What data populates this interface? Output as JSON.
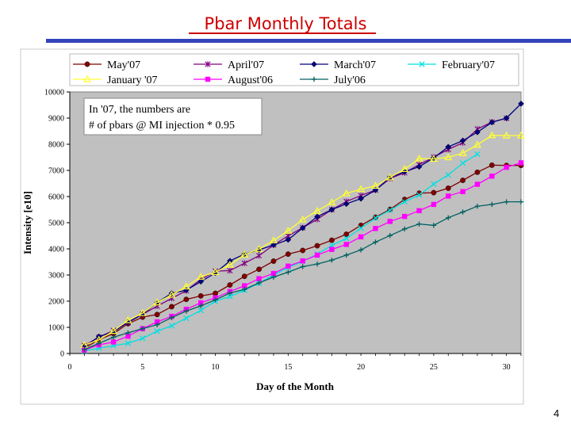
{
  "slide": {
    "title": "Pbar Monthly Totals",
    "page_number": "4"
  },
  "chart_data": {
    "type": "line",
    "xlabel": "Day of the  Month",
    "ylabel": "Intensity [e10]",
    "xlim": [
      0,
      31
    ],
    "ylim": [
      0,
      10000
    ],
    "xticks": [
      0,
      5,
      10,
      15,
      20,
      25,
      30
    ],
    "yticks": [
      0,
      1000,
      2000,
      3000,
      4000,
      5000,
      6000,
      7000,
      8000,
      9000,
      10000
    ],
    "grid": false,
    "plot_background": "#c0c0c0",
    "legend_position": "top",
    "annotation": [
      "In '07, the numbers are",
      "# of pbars @ MI injection * 0.95"
    ],
    "series": [
      {
        "name": "May'07",
        "color": "#800000",
        "marker": "circle",
        "x": [
          1,
          2,
          3,
          4,
          5,
          6,
          7,
          8,
          9,
          10,
          11,
          12,
          13,
          14,
          15,
          16,
          17,
          18,
          19,
          20,
          21,
          22,
          23,
          24,
          25,
          26,
          27,
          28,
          29,
          30,
          31
        ],
        "y": [
          200,
          530,
          760,
          1140,
          1390,
          1490,
          1790,
          2070,
          2200,
          2300,
          2620,
          2950,
          3220,
          3530,
          3800,
          3940,
          4120,
          4330,
          4560,
          4900,
          5210,
          5510,
          5890,
          6130,
          6150,
          6320,
          6620,
          6930,
          7200,
          7190,
          7190
        ]
      },
      {
        "name": "April'07",
        "color": "#800080",
        "marker": "star",
        "x": [
          1,
          2,
          3,
          4,
          5,
          6,
          7,
          8,
          9,
          10,
          11,
          12,
          13,
          14,
          15,
          16,
          17,
          18,
          19,
          20,
          21,
          22,
          23,
          24,
          25,
          26,
          27,
          28,
          29,
          30
        ],
        "y": [
          300,
          620,
          880,
          1180,
          1500,
          1810,
          2110,
          2400,
          2830,
          3150,
          3170,
          3450,
          3740,
          4150,
          4500,
          4810,
          5130,
          5500,
          5810,
          6040,
          6250,
          6690,
          6910,
          7220,
          7510,
          7800,
          8060,
          8580,
          8850,
          8990
        ]
      },
      {
        "name": "March'07",
        "color": "#000080",
        "marker": "diamond",
        "x": [
          1,
          2,
          3,
          4,
          5,
          6,
          7,
          8,
          9,
          10,
          11,
          12,
          13,
          14,
          15,
          16,
          17,
          18,
          19,
          20,
          21,
          22,
          23,
          24,
          25,
          26,
          27,
          28,
          29,
          30,
          31
        ],
        "y": [
          250,
          650,
          830,
          1200,
          1500,
          1950,
          2300,
          2420,
          2750,
          3080,
          3540,
          3800,
          3960,
          4150,
          4350,
          4800,
          5230,
          5500,
          5720,
          5920,
          6250,
          6730,
          6950,
          7140,
          7480,
          7900,
          8140,
          8460,
          8840,
          9000,
          9550
        ]
      },
      {
        "name": "February'07",
        "color": "#00e0e0",
        "marker": "x",
        "x": [
          1,
          2,
          3,
          4,
          5,
          6,
          7,
          8,
          9,
          10,
          11,
          12,
          13,
          14,
          15,
          16,
          17,
          18,
          19,
          20,
          21,
          22,
          23,
          24,
          25,
          26,
          27,
          28
        ],
        "y": [
          100,
          200,
          300,
          390,
          580,
          850,
          1060,
          1350,
          1650,
          2000,
          2180,
          2420,
          2690,
          3000,
          3290,
          3520,
          3800,
          4130,
          4400,
          4790,
          5180,
          5480,
          5800,
          6060,
          6480,
          6830,
          7280,
          7620
        ]
      },
      {
        "name": "January '07",
        "color": "#ffff33",
        "marker": "triangle",
        "x": [
          1,
          2,
          3,
          4,
          5,
          6,
          7,
          8,
          9,
          10,
          11,
          12,
          13,
          14,
          15,
          16,
          17,
          18,
          19,
          20,
          21,
          22,
          23,
          24,
          25,
          26,
          27,
          28,
          29,
          30,
          31
        ],
        "y": [
          320,
          520,
          860,
          1270,
          1540,
          1950,
          2240,
          2560,
          2930,
          3110,
          3390,
          3780,
          3990,
          4320,
          4690,
          5120,
          5450,
          5780,
          6120,
          6280,
          6410,
          6730,
          7050,
          7450,
          7440,
          7500,
          7660,
          7980,
          8340,
          8330,
          8330
        ]
      },
      {
        "name": "August'06",
        "color": "#ff00ff",
        "marker": "square",
        "x": [
          1,
          2,
          3,
          4,
          5,
          6,
          7,
          8,
          9,
          10,
          11,
          12,
          13,
          14,
          15,
          16,
          17,
          18,
          19,
          20,
          21,
          22,
          23,
          24,
          25,
          26,
          27,
          28,
          29,
          30,
          31
        ],
        "y": [
          130,
          330,
          440,
          660,
          950,
          1210,
          1420,
          1690,
          1940,
          2130,
          2370,
          2590,
          2860,
          3060,
          3340,
          3540,
          3760,
          3980,
          4170,
          4460,
          4780,
          5050,
          5240,
          5460,
          5700,
          6020,
          6190,
          6470,
          6780,
          7120,
          7290
        ]
      },
      {
        "name": "July'06",
        "color": "#006060",
        "marker": "plus",
        "x": [
          1,
          2,
          3,
          4,
          5,
          6,
          7,
          8,
          9,
          10,
          11,
          12,
          13,
          14,
          15,
          16,
          17,
          18,
          19,
          20,
          21,
          22,
          23,
          24,
          25,
          26,
          27,
          28,
          29,
          30,
          31
        ],
        "y": [
          150,
          390,
          620,
          790,
          950,
          1100,
          1370,
          1620,
          1820,
          2050,
          2310,
          2450,
          2700,
          2920,
          3110,
          3320,
          3420,
          3570,
          3760,
          3960,
          4260,
          4510,
          4760,
          4950,
          4900,
          5190,
          5410,
          5630,
          5700,
          5800,
          5800
        ]
      }
    ]
  }
}
